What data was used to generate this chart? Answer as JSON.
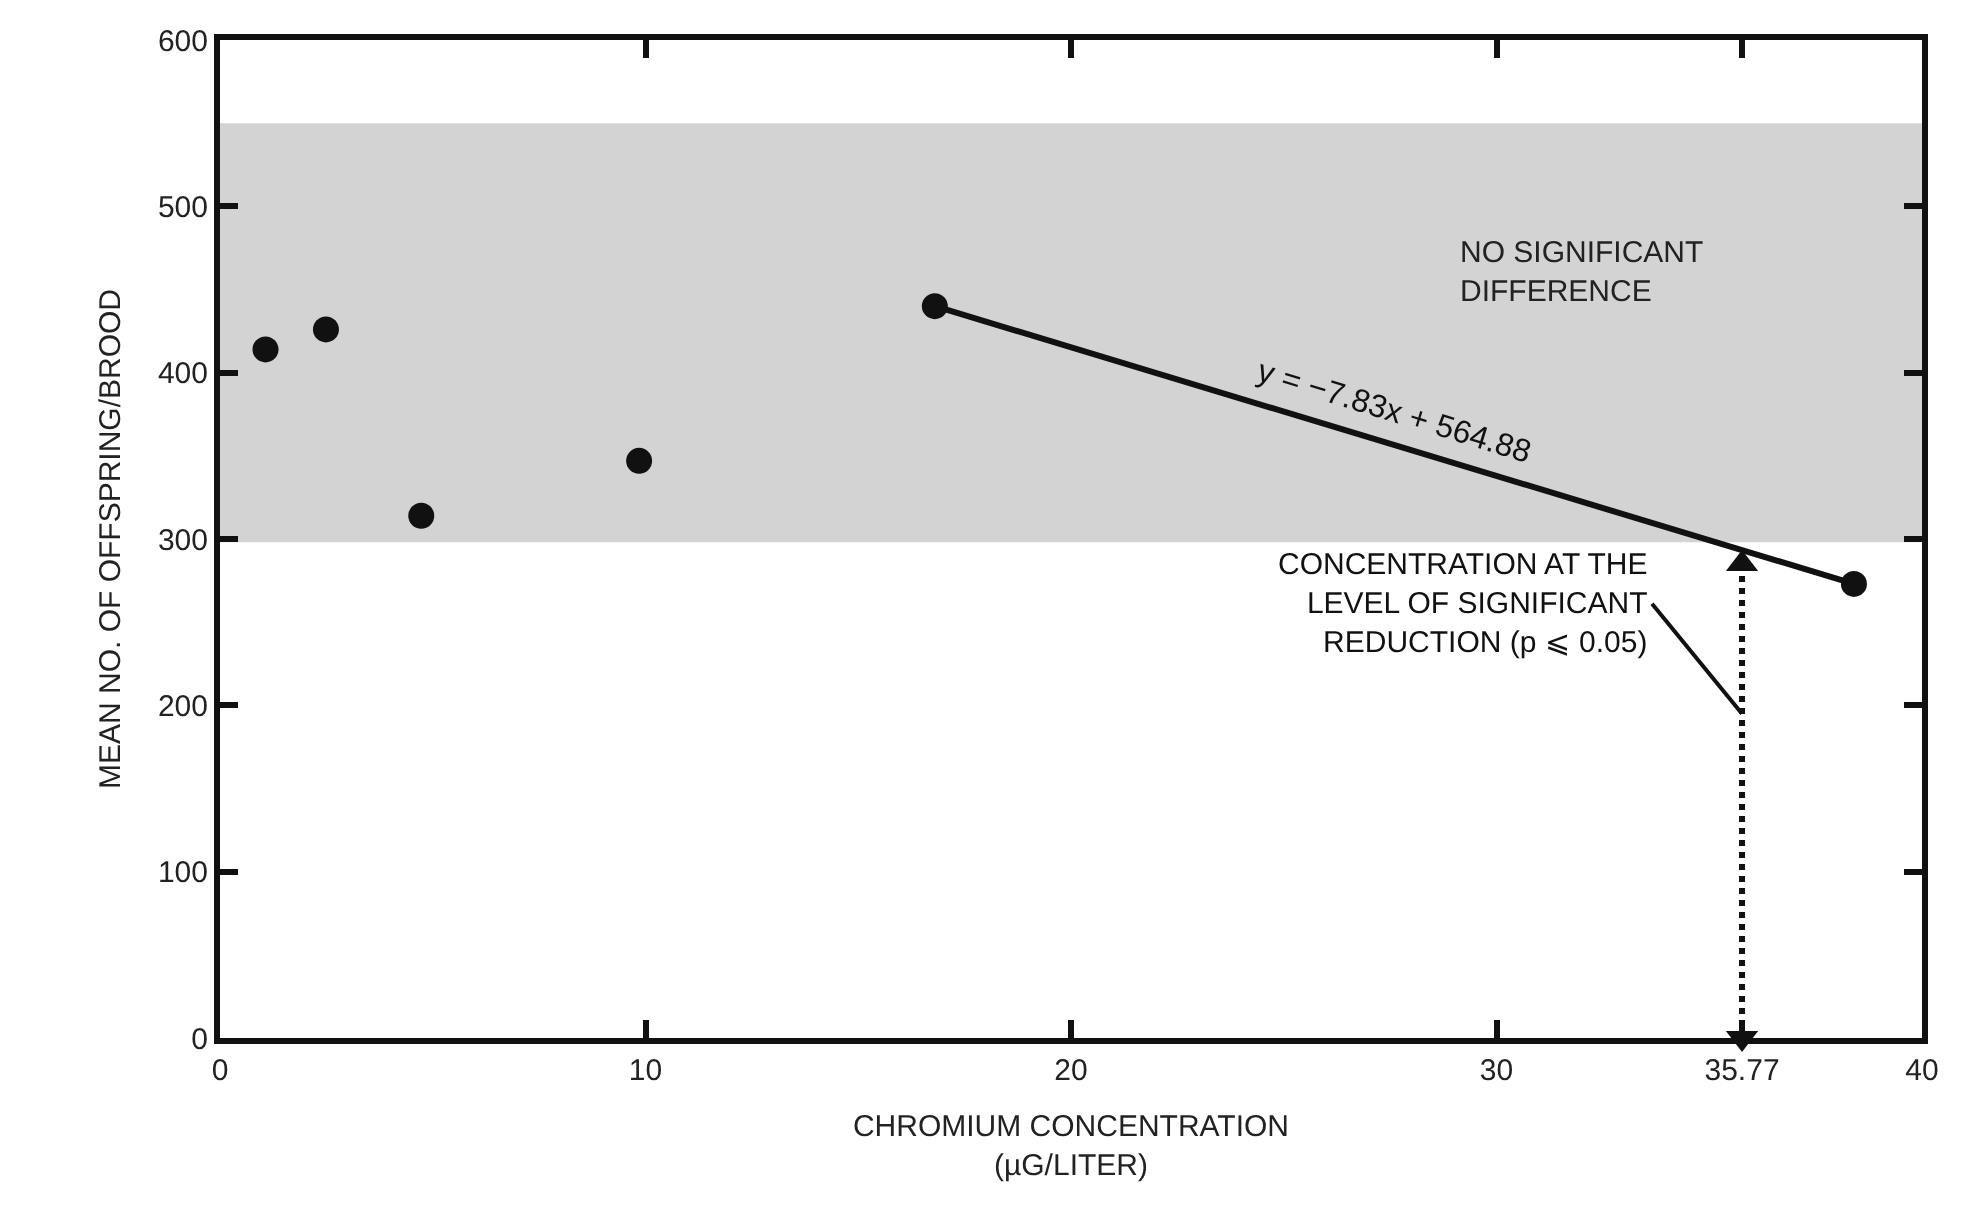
{
  "chart_data": {
    "type": "scatter",
    "xlabel": "CHROMIUM CONCENTRATION\n(µG/LITER)",
    "ylabel": "MEAN NO. OF OFFSPRING/BROOD",
    "series": [
      {
        "color": "#111111",
        "marker": "circle",
        "x": [
          1.07,
          2.49,
          4.73,
          9.85,
          16.8,
          38.4
        ],
        "values": [
          414,
          426,
          314,
          347,
          440,
          273
        ]
      },
      {
        "type": "line",
        "name": "y = −7.83x + 564.88",
        "color": "#111111",
        "marker": "none",
        "x": [
          16.8,
          38.4
        ],
        "values": [
          440,
          273
        ]
      },
      {
        "type": "line",
        "color": "#111111",
        "marker": "triangle",
        "line_style": "dotted",
        "x": [
          35.77,
          35.77
        ],
        "values": [
          0,
          285
        ]
      }
    ],
    "bands": [
      {
        "axis": "y",
        "from": 298,
        "to": 550,
        "label": "NO SIGNIFICANT\nDIFFERENCE",
        "color": "#d3d3d3"
      }
    ],
    "annotations": [
      {
        "text": "CONCENTRATION AT THE\nLEVEL OF SIGNIFICANT\nREDUCTION (p ⩽ 0.05)",
        "x": 35.77,
        "y": 195
      }
    ],
    "xlim": [
      0,
      40
    ],
    "xticks": [
      0,
      10,
      20,
      30,
      35.77,
      40
    ],
    "ylim": [
      0,
      600
    ],
    "yticks": [
      0,
      100,
      200,
      300,
      400,
      500,
      600
    ],
    "grid": false
  }
}
